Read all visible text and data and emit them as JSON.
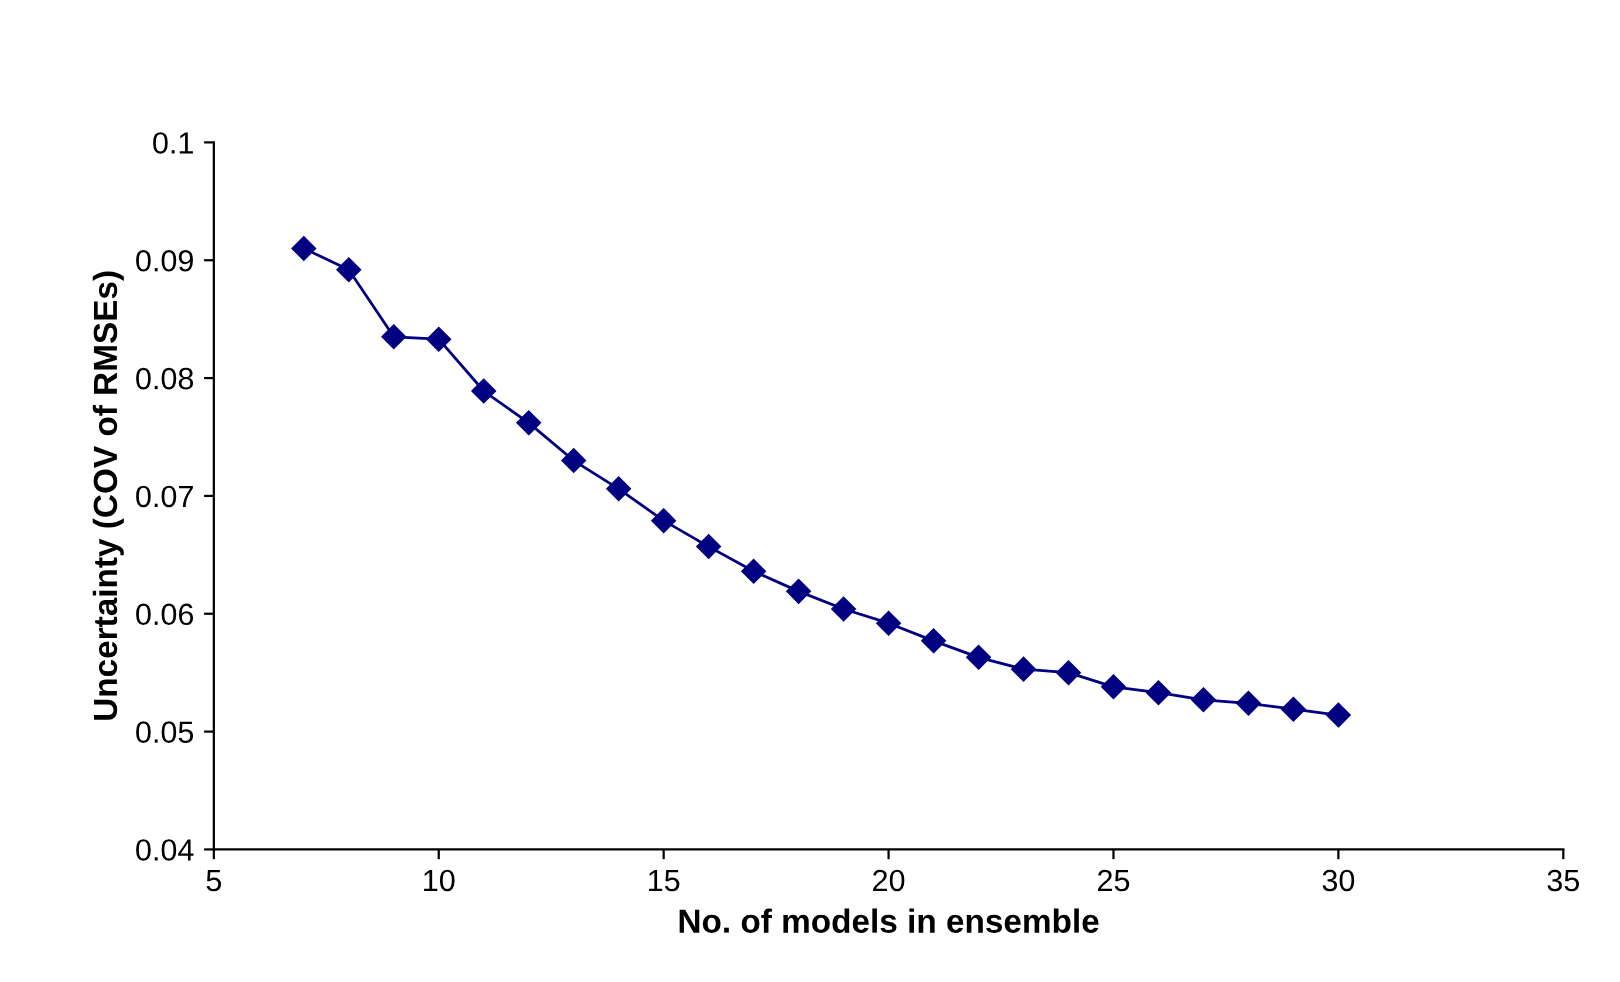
{
  "chart_data": {
    "type": "line",
    "xlabel": "No. of models in ensemble",
    "ylabel": "Uncertainty (COV of RMSEs)",
    "x": [
      7,
      8,
      9,
      10,
      11,
      12,
      13,
      14,
      15,
      16,
      17,
      18,
      19,
      20,
      21,
      22,
      23,
      24,
      25,
      26,
      27,
      28,
      29,
      30
    ],
    "series": [
      {
        "color": "#000080",
        "values": [
          0.091,
          0.0892,
          0.0835,
          0.0833,
          0.0789,
          0.0762,
          0.073,
          0.0706,
          0.0679,
          0.0657,
          0.0636,
          0.0619,
          0.0604,
          0.0592,
          0.0577,
          0.0563,
          0.0553,
          0.055,
          0.0538,
          0.0533,
          0.0527,
          0.0524,
          0.0519,
          0.0514
        ]
      }
    ],
    "xlim": [
      5,
      35
    ],
    "xticks": [
      5,
      10,
      15,
      20,
      25,
      30,
      35
    ],
    "ylim": [
      0.04,
      0.1
    ],
    "yticks": [
      0.04,
      0.05,
      0.06,
      0.07,
      0.08,
      0.09,
      0.1
    ],
    "marker": "diamond",
    "line_style": "solid",
    "grid": false,
    "legend": false
  }
}
